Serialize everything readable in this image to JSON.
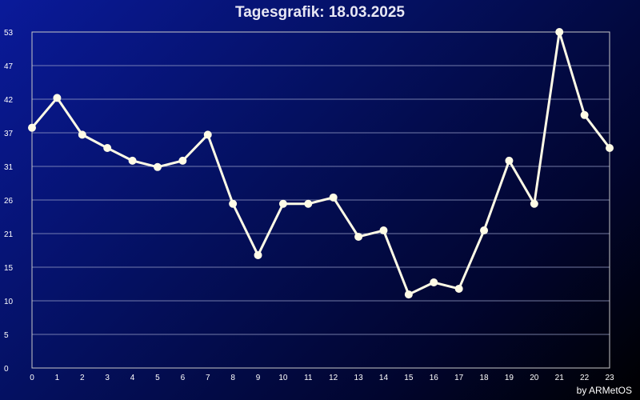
{
  "chart_data": {
    "type": "line",
    "title": "Tagesgrafik: 18.03.2025",
    "x": [
      0,
      1,
      2,
      3,
      4,
      5,
      6,
      7,
      8,
      9,
      10,
      11,
      12,
      13,
      14,
      15,
      16,
      17,
      18,
      19,
      20,
      21,
      22,
      23
    ],
    "values": [
      37.9,
      42.6,
      36.8,
      34.7,
      32.7,
      31.7,
      32.7,
      36.8,
      25.9,
      17.8,
      25.9,
      25.9,
      26.9,
      20.7,
      21.7,
      11.6,
      13.5,
      12.5,
      21.7,
      32.7,
      25.9,
      53,
      39.9,
      34.7
    ],
    "yticks": [
      "0",
      "5",
      "10",
      "15",
      "21",
      "26",
      "31",
      "37",
      "42",
      "47",
      "53"
    ],
    "ylim": [
      0,
      53
    ],
    "grid": true,
    "colors": {
      "line": "#fffbe6",
      "grid": "#9aa0c8",
      "axis": "#c8c8c8"
    }
  },
  "credit": "by ARMetOS"
}
